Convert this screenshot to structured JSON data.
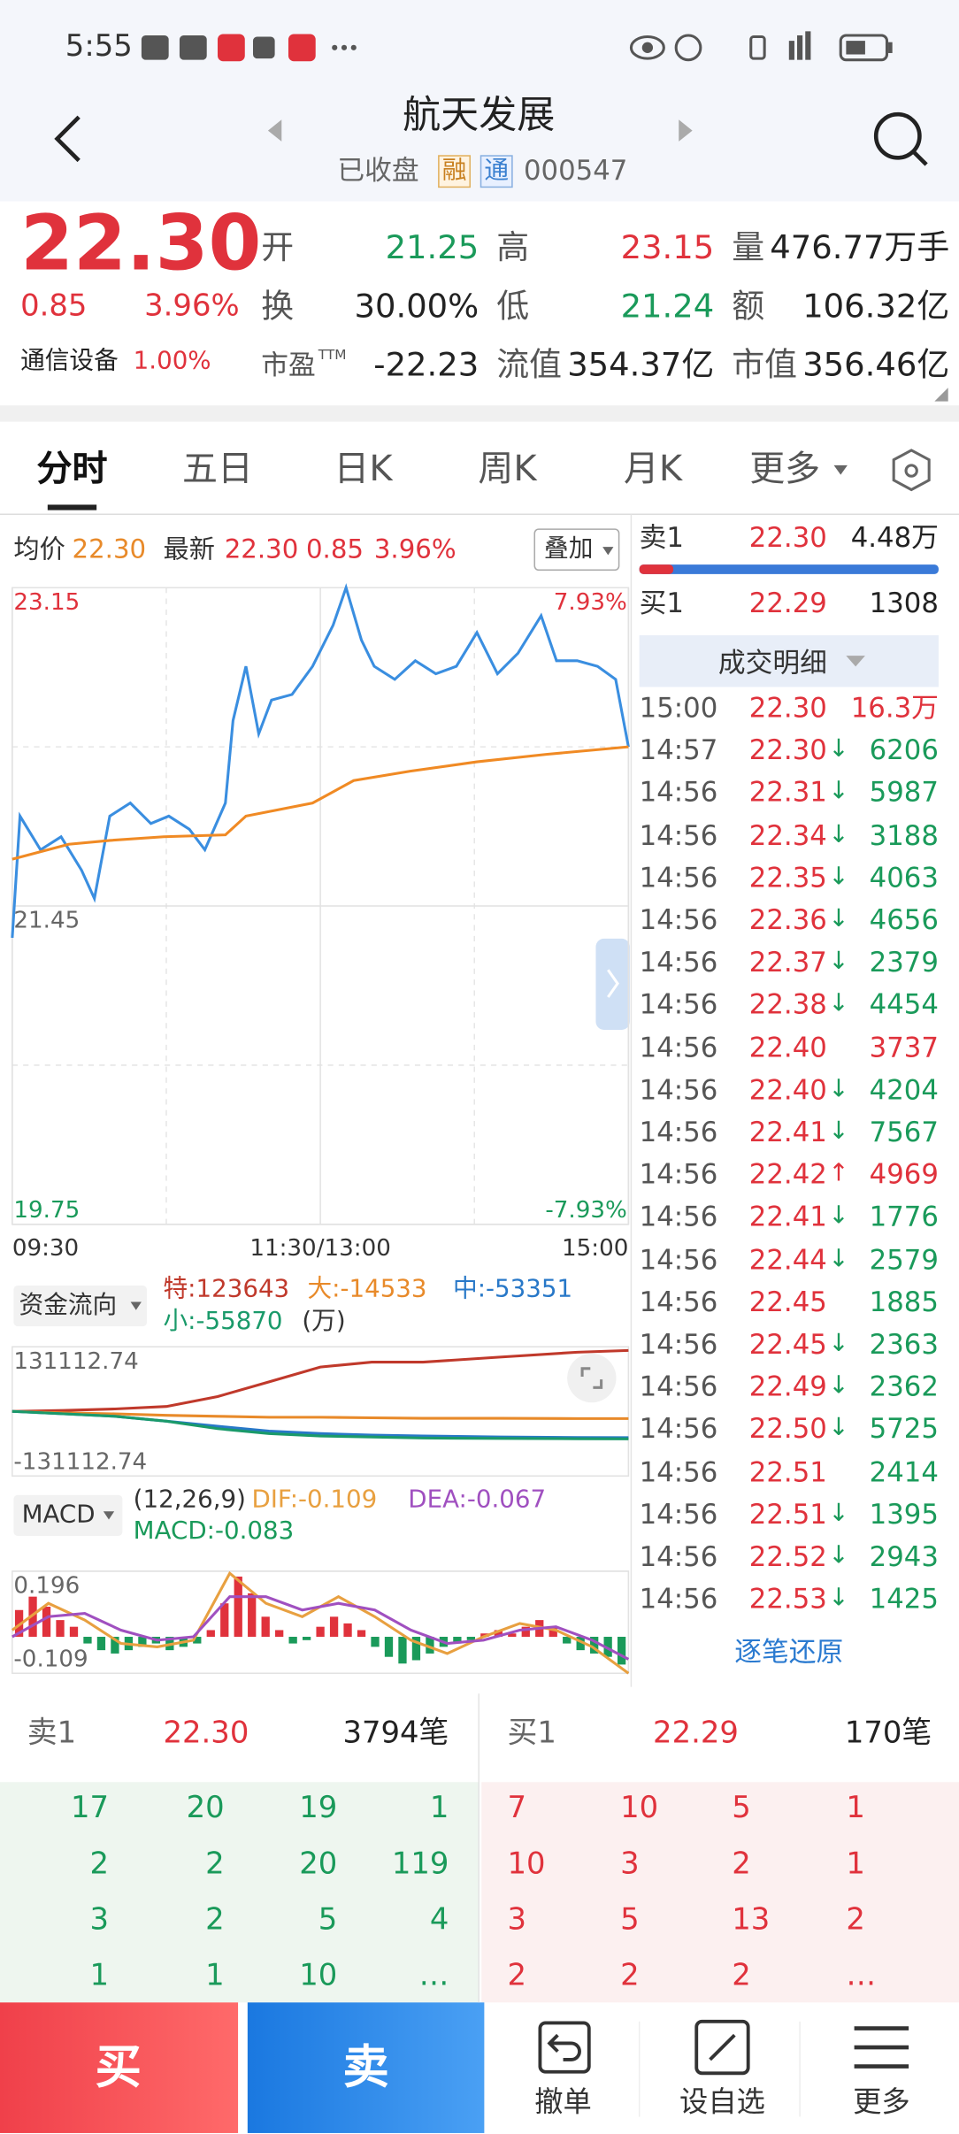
{
  "status_bar": {
    "time": "5:55"
  },
  "header": {
    "title": "航天发展",
    "status": "已收盘",
    "badges": [
      "融",
      "通"
    ],
    "code": "000547"
  },
  "quote": {
    "price": "22.30",
    "change": "0.85",
    "change_pct": "3.96%",
    "fields": [
      {
        "label": "开",
        "value": "21.25",
        "color": "#1a9a5a"
      },
      {
        "label": "高",
        "value": "23.15",
        "color": "#e0323c"
      },
      {
        "label": "量",
        "value": "476.77万手",
        "color": "#222222"
      },
      {
        "label": "换",
        "value": "30.00%",
        "color": "#222222"
      },
      {
        "label": "低",
        "value": "21.24",
        "color": "#1a9a5a"
      },
      {
        "label": "额",
        "value": "106.32亿",
        "color": "#222222"
      },
      {
        "label": "市盈",
        "sup": "TTM",
        "value": "-22.23",
        "color": "#222222"
      },
      {
        "label": "流值",
        "value": "354.37亿",
        "color": "#222222"
      },
      {
        "label": "市值",
        "value": "356.46亿",
        "color": "#222222"
      }
    ],
    "sector": {
      "name": "通信设备",
      "pct": "1.00%"
    }
  },
  "tabs": [
    "分时",
    "五日",
    "日K",
    "周K",
    "月K",
    "更多"
  ],
  "intraday_legend": {
    "avg_label": "均价",
    "avg_value": "22.30",
    "latest_label": "最新",
    "latest": [
      "22.30",
      "0.85",
      "3.96%"
    ],
    "overlay": "叠加"
  },
  "chart_data": [
    {
      "type": "line",
      "xlim": [
        0,
        240
      ],
      "xticks": [
        {
          "value": 0,
          "label": "09:30"
        },
        {
          "value": 120,
          "label": "11:30/13:00"
        },
        {
          "value": 240,
          "label": "15:00"
        }
      ],
      "ylim": [
        19.75,
        23.15
      ],
      "yticks": [
        23.15,
        21.45,
        19.75
      ],
      "y2lim": [
        -7.93,
        7.93
      ],
      "y2ticks": [
        {
          "value": 7.93,
          "label": "7.93%"
        },
        {
          "value": -7.93,
          "label": "-7.93%"
        }
      ],
      "series": [
        {
          "name": "最新",
          "color": "#3a8ee0",
          "x": [
            0,
            3,
            11,
            19,
            27,
            32,
            38,
            46,
            54,
            61,
            69,
            75,
            83,
            86,
            91,
            96,
            101,
            109,
            117,
            125,
            130,
            136,
            141,
            149,
            157,
            165,
            173,
            181,
            189,
            197,
            206,
            212,
            220,
            228,
            235,
            240
          ],
          "values": [
            21.28,
            21.93,
            21.75,
            21.82,
            21.64,
            21.49,
            21.93,
            22.0,
            21.89,
            21.93,
            21.86,
            21.75,
            22.0,
            22.44,
            22.73,
            22.37,
            22.55,
            22.58,
            22.73,
            22.95,
            23.15,
            22.87,
            22.73,
            22.66,
            22.76,
            22.69,
            22.73,
            22.91,
            22.69,
            22.8,
            23.0,
            22.76,
            22.76,
            22.73,
            22.66,
            22.3
          ]
        },
        {
          "name": "均价",
          "color": "#f08a24",
          "x": [
            0,
            22,
            38,
            59,
            83,
            91,
            117,
            133,
            155,
            181,
            208,
            240
          ],
          "values": [
            21.7,
            21.78,
            21.8,
            21.82,
            21.83,
            21.93,
            22.0,
            22.12,
            22.17,
            22.22,
            22.26,
            22.3
          ]
        }
      ]
    },
    {
      "type": "line",
      "xlim": [
        0,
        240
      ],
      "x": [
        0,
        20,
        40,
        60,
        80,
        100,
        120,
        140,
        160,
        190,
        220,
        240
      ],
      "ylim": [
        -131112.74,
        131112.74
      ],
      "yticks": [
        131112.74,
        -131112.74
      ],
      "series": [
        {
          "name": "特:123643",
          "color": "#c0392b",
          "values": [
            0,
            2000,
            5000,
            10000,
            30000,
            60000,
            90000,
            100000,
            100000,
            110000,
            120000,
            123643
          ]
        },
        {
          "name": "大:-14533",
          "color": "#e88a2a",
          "values": [
            0,
            -3000,
            -5000,
            -8000,
            -10000,
            -12000,
            -12000,
            -13000,
            -14000,
            -14000,
            -14500,
            -14533
          ]
        },
        {
          "name": "中:-53351",
          "color": "#2878c8",
          "values": [
            0,
            -5000,
            -10000,
            -20000,
            -30000,
            -40000,
            -45000,
            -48000,
            -50000,
            -52000,
            -53000,
            -53351
          ]
        },
        {
          "name": "小:-55870",
          "color": "#1a9a6a",
          "values": [
            0,
            -5000,
            -10000,
            -20000,
            -35000,
            -45000,
            -50000,
            -52000,
            -54000,
            -55000,
            -55500,
            -55870
          ]
        }
      ]
    },
    {
      "type": "macd",
      "ylim": [
        -0.109,
        0.196
      ],
      "yticks": [
        0.196,
        -0.109
      ],
      "bars": {
        "name": "MACD:-0.083",
        "colors": [
          "#e0323c",
          "#1a9a5a"
        ],
        "values": [
          0.08,
          0.12,
          0.09,
          0.05,
          0.03,
          -0.02,
          -0.04,
          -0.05,
          -0.04,
          -0.03,
          -0.02,
          -0.04,
          -0.03,
          -0.02,
          0.02,
          0.1,
          0.18,
          0.13,
          0.06,
          0.02,
          -0.02,
          -0.01,
          0.03,
          0.06,
          0.04,
          0.02,
          -0.03,
          -0.06,
          -0.08,
          -0.07,
          -0.05,
          -0.03,
          -0.02,
          -0.01,
          0.01,
          0.02,
          0.01,
          0.03,
          0.05,
          0.03,
          -0.02,
          -0.04,
          -0.05,
          -0.06,
          -0.083
        ]
      },
      "series": [
        {
          "name": "DIF:-0.109",
          "color": "#e8a040",
          "values": [
            0.02,
            0.1,
            0.05,
            -0.02,
            -0.03,
            -0.01,
            0.19,
            0.1,
            0.06,
            0.12,
            0.06,
            -0.01,
            -0.05,
            0.0,
            0.04,
            0.02,
            -0.03,
            -0.109
          ]
        },
        {
          "name": "DEA:-0.067",
          "color": "#a050c0",
          "values": [
            0.0,
            0.06,
            0.07,
            0.02,
            -0.01,
            0.0,
            0.12,
            0.12,
            0.08,
            0.1,
            0.08,
            0.02,
            -0.02,
            -0.01,
            0.02,
            0.03,
            -0.01,
            -0.067
          ]
        }
      ]
    }
  ],
  "flow_header": {
    "selector": "资金流向",
    "unit": "(万)"
  },
  "macd_header": {
    "selector": "MACD",
    "params": "(12,26,9)"
  },
  "order_book": {
    "ask": {
      "label": "卖1",
      "price": "22.30",
      "volume": "4.48万"
    },
    "bid": {
      "label": "买1",
      "price": "22.29",
      "volume": "1308"
    }
  },
  "trades": {
    "title": "成交明细",
    "link": "逐笔还原",
    "rows": [
      {
        "time": "15:00",
        "price": "22.30",
        "volume": "16.3万",
        "color": "#e0323c"
      },
      {
        "time": "14:57",
        "price": "22.30",
        "dir": "↓",
        "volume": "6206",
        "color": "#1a9a5a"
      },
      {
        "time": "14:56",
        "price": "22.31",
        "dir": "↓",
        "volume": "5987",
        "color": "#1a9a5a"
      },
      {
        "time": "14:56",
        "price": "22.34",
        "dir": "↓",
        "volume": "3188",
        "color": "#1a9a5a"
      },
      {
        "time": "14:56",
        "price": "22.35",
        "dir": "↓",
        "volume": "4063",
        "color": "#1a9a5a"
      },
      {
        "time": "14:56",
        "price": "22.36",
        "dir": "↓",
        "volume": "4656",
        "color": "#1a9a5a"
      },
      {
        "time": "14:56",
        "price": "22.37",
        "dir": "↓",
        "volume": "2379",
        "color": "#1a9a5a"
      },
      {
        "time": "14:56",
        "price": "22.38",
        "dir": "↓",
        "volume": "4454",
        "color": "#1a9a5a"
      },
      {
        "time": "14:56",
        "price": "22.40",
        "volume": "3737",
        "color": "#e0323c"
      },
      {
        "time": "14:56",
        "price": "22.40",
        "dir": "↓",
        "volume": "4204",
        "color": "#1a9a5a"
      },
      {
        "time": "14:56",
        "price": "22.41",
        "dir": "↓",
        "volume": "7567",
        "color": "#1a9a5a"
      },
      {
        "time": "14:56",
        "price": "22.42",
        "dir": "↑",
        "volume": "4969",
        "color": "#e0323c"
      },
      {
        "time": "14:56",
        "price": "22.41",
        "dir": "↓",
        "volume": "1776",
        "color": "#1a9a5a"
      },
      {
        "time": "14:56",
        "price": "22.44",
        "dir": "↓",
        "volume": "2579",
        "color": "#1a9a5a"
      },
      {
        "time": "14:56",
        "price": "22.45",
        "volume": "1885",
        "color": "#1a9a5a"
      },
      {
        "time": "14:56",
        "price": "22.45",
        "dir": "↓",
        "volume": "2363",
        "color": "#1a9a5a"
      },
      {
        "time": "14:56",
        "price": "22.49",
        "dir": "↓",
        "volume": "2362",
        "color": "#1a9a5a"
      },
      {
        "time": "14:56",
        "price": "22.50",
        "dir": "↓",
        "volume": "5725",
        "color": "#1a9a5a"
      },
      {
        "time": "14:56",
        "price": "22.51",
        "volume": "2414",
        "color": "#1a9a5a"
      },
      {
        "time": "14:56",
        "price": "22.51",
        "dir": "↓",
        "volume": "1395",
        "color": "#1a9a5a"
      },
      {
        "time": "14:56",
        "price": "22.52",
        "dir": "↓",
        "volume": "2943",
        "color": "#1a9a5a"
      },
      {
        "time": "14:56",
        "price": "22.53",
        "dir": "↓",
        "volume": "1425",
        "color": "#1a9a5a"
      }
    ]
  },
  "queue": {
    "ask": {
      "label": "卖1",
      "price": "22.30",
      "count": "3794笔",
      "grid": [
        [
          "17",
          "20",
          "19",
          "1"
        ],
        [
          "2",
          "2",
          "20",
          "119"
        ],
        [
          "3",
          "2",
          "5",
          "4"
        ],
        [
          "1",
          "1",
          "10",
          "…"
        ]
      ]
    },
    "bid": {
      "label": "买1",
      "price": "22.29",
      "count": "170笔",
      "grid": [
        [
          "7",
          "10",
          "5",
          "1"
        ],
        [
          "10",
          "3",
          "2",
          "1"
        ],
        [
          "3",
          "5",
          "13",
          "2"
        ],
        [
          "2",
          "2",
          "2",
          "…"
        ]
      ]
    }
  },
  "bottom_bar": {
    "buy": "买",
    "sell": "卖",
    "actions": [
      "撤单",
      "设自选",
      "更多"
    ]
  }
}
